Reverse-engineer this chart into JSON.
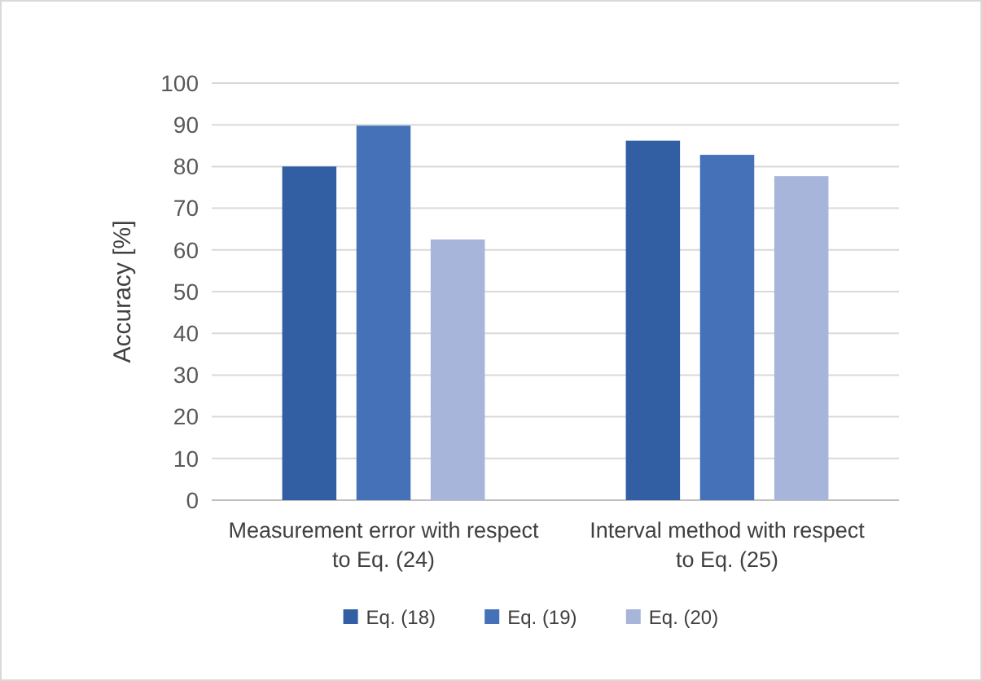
{
  "chart_data": {
    "type": "bar",
    "ylabel": "Accuracy [%]",
    "categories": [
      "Measurement error with respect to Eq. (24)",
      "Interval method with respect to Eq. (25)"
    ],
    "series": [
      {
        "name": "Eq. (18)",
        "color": "#325ea3",
        "values": [
          80,
          86.2
        ]
      },
      {
        "name": "Eq. (19)",
        "color": "#4471b8",
        "values": [
          89.8,
          82.8
        ]
      },
      {
        "name": "Eq. (20)",
        "color": "#a7b5da",
        "values": [
          62.5,
          77.7
        ]
      }
    ],
    "ylim": [
      0,
      100
    ],
    "yticks": [
      0,
      10,
      20,
      30,
      40,
      50,
      60,
      70,
      80,
      90,
      100
    ],
    "grid": "y",
    "legend": "bottom"
  }
}
